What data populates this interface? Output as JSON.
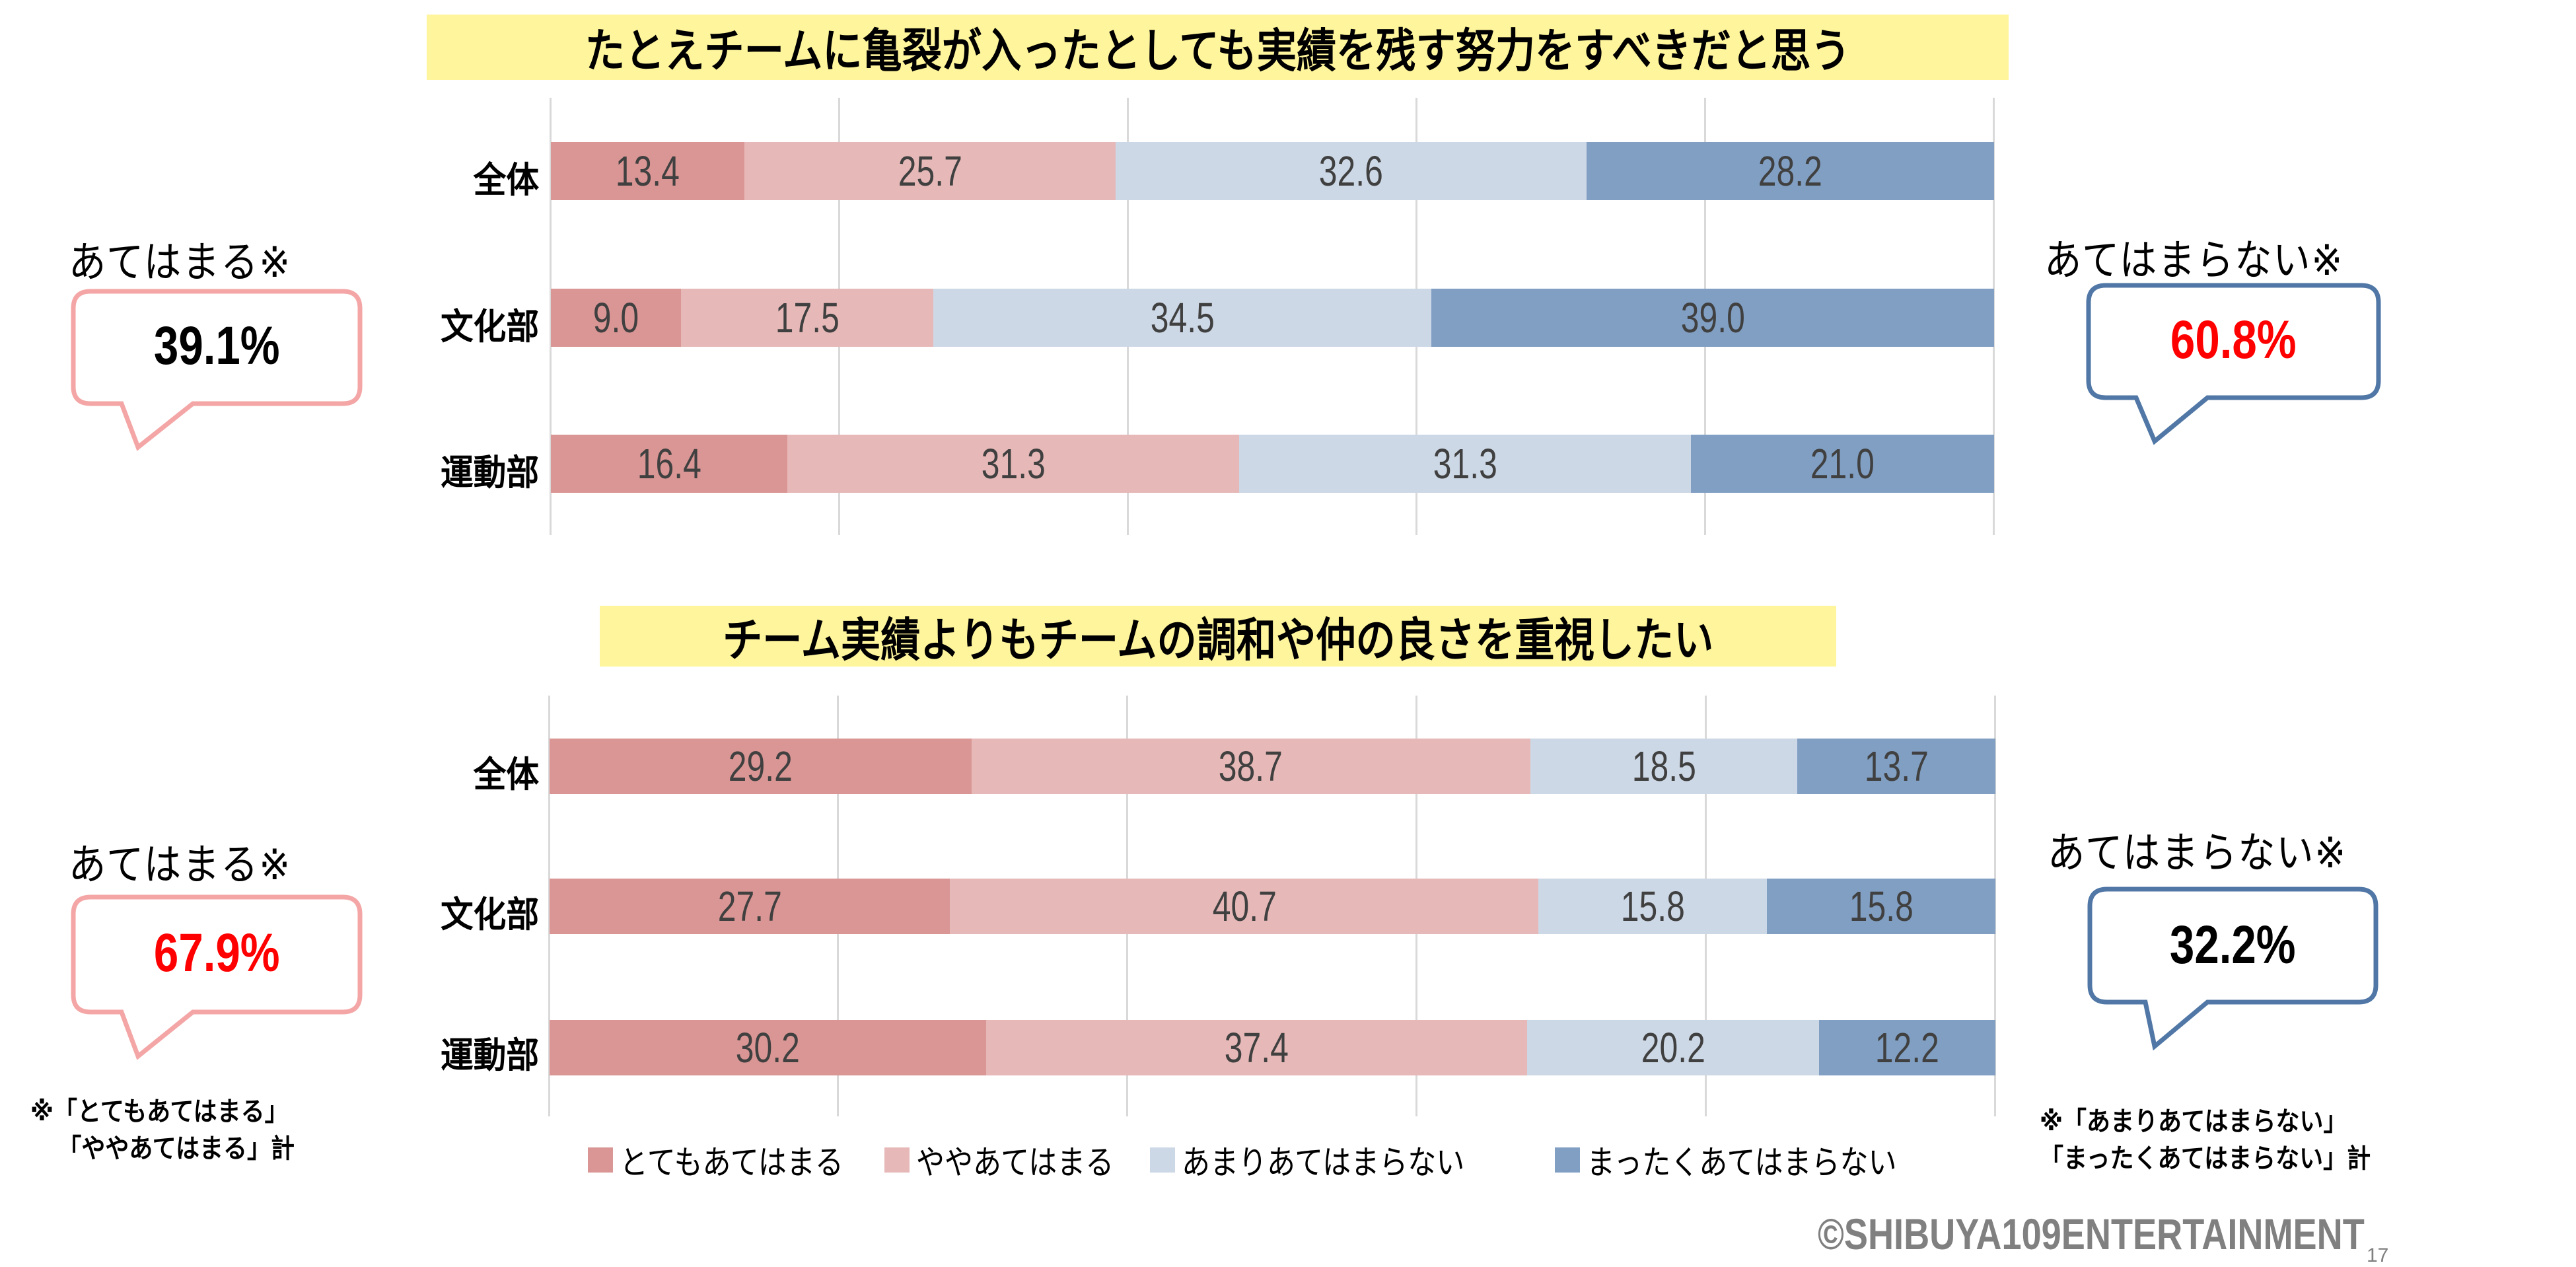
{
  "colors": {
    "very_true": "#D99694",
    "somewhat_true": "#E6B9B8",
    "not_really": "#CDD8E6",
    "not_at_all": "#819FC3",
    "title_bg": "#FFF59D",
    "callout_pink": "#F4A6A6",
    "callout_blue": "#5077A6",
    "highlight_red": "#FF0000",
    "data_label": "#404040",
    "gridline": "#D9D9D9",
    "copyright": "#808080"
  },
  "legend": [
    {
      "label": "とてもあてはまる",
      "color_key": "very_true"
    },
    {
      "label": "ややあてはまる",
      "color_key": "somewhat_true"
    },
    {
      "label": "あまりあてはまらない",
      "color_key": "not_really"
    },
    {
      "label": "まったくあてはまらない",
      "color_key": "not_at_all"
    }
  ],
  "charts": [
    {
      "title": "たとえチームに亀裂が入ったとしても実績を残す努力をすべきだと思う",
      "rows": [
        {
          "category": "全体",
          "values": [
            13.4,
            25.7,
            32.6,
            28.2
          ],
          "labels": [
            "13.4",
            "25.7",
            "32.6",
            "28.2"
          ]
        },
        {
          "category": "文化部",
          "values": [
            9.0,
            17.5,
            34.5,
            39.0
          ],
          "labels": [
            "9.0",
            "17.5",
            "34.5",
            "39.0"
          ]
        },
        {
          "category": "運動部",
          "values": [
            16.4,
            31.3,
            31.3,
            21.0
          ],
          "labels": [
            "16.4",
            "31.3",
            "31.3",
            "21.0"
          ]
        }
      ],
      "callout_left": {
        "label": "あてはまる※",
        "value": "39.1%",
        "value_color": "#000000"
      },
      "callout_right": {
        "label": "あてはまらない※",
        "value": "60.8%",
        "value_color": "#FF0000"
      }
    },
    {
      "title": "チーム実績よりもチームの調和や仲の良さを重視したい",
      "rows": [
        {
          "category": "全体",
          "values": [
            29.2,
            38.7,
            18.5,
            13.7
          ],
          "labels": [
            "29.2",
            "38.7",
            "18.5",
            "13.7"
          ]
        },
        {
          "category": "文化部",
          "values": [
            27.7,
            40.7,
            15.8,
            15.8
          ],
          "labels": [
            "27.7",
            "40.7",
            "15.8",
            "15.8"
          ]
        },
        {
          "category": "運動部",
          "values": [
            30.2,
            37.4,
            20.2,
            12.2
          ],
          "labels": [
            "30.2",
            "37.4",
            "20.2",
            "12.2"
          ]
        }
      ],
      "callout_left": {
        "label": "あてはまる※",
        "value": "67.9%",
        "value_color": "#FF0000"
      },
      "callout_right": {
        "label": "あてはまらない※",
        "value": "32.2%",
        "value_color": "#000000"
      }
    }
  ],
  "footnotes": {
    "left": [
      "※「とてもあてはまる」",
      "「ややあてはまる」計"
    ],
    "right": [
      "※「あまりあてはまらない」",
      "「まったくあてはまらない」計"
    ]
  },
  "copyright": "©SHIBUYA109ENTERTAINMENT",
  "page_number": "17",
  "chart_data": [
    {
      "type": "bar",
      "orientation": "horizontal",
      "stacked": true,
      "title": "たとえチームに亀裂が入ったとしても実績を残す努力をすべきだと思う",
      "categories": [
        "全体",
        "文化部",
        "運動部"
      ],
      "series": [
        {
          "name": "とてもあてはまる",
          "values": [
            13.4,
            9.0,
            16.4
          ]
        },
        {
          "name": "ややあてはまる",
          "values": [
            25.7,
            17.5,
            31.3
          ]
        },
        {
          "name": "あまりあてはまらない",
          "values": [
            32.6,
            34.5,
            31.3
          ]
        },
        {
          "name": "まったくあてはまらない",
          "values": [
            28.2,
            39.0,
            21.0
          ]
        }
      ],
      "annotations": [
        {
          "text": "あてはまる※",
          "value": "39.1%"
        },
        {
          "text": "あてはまらない※",
          "value": "60.8%"
        }
      ],
      "xlabel": "",
      "ylabel": "",
      "xlim": [
        0,
        100
      ],
      "grid": true,
      "legend_position": "bottom"
    },
    {
      "type": "bar",
      "orientation": "horizontal",
      "stacked": true,
      "title": "チーム実績よりもチームの調和や仲の良さを重視したい",
      "categories": [
        "全体",
        "文化部",
        "運動部"
      ],
      "series": [
        {
          "name": "とてもあてはまる",
          "values": [
            29.2,
            27.7,
            30.2
          ]
        },
        {
          "name": "ややあてはまる",
          "values": [
            38.7,
            40.7,
            37.4
          ]
        },
        {
          "name": "あまりあてはまらない",
          "values": [
            18.5,
            15.8,
            20.2
          ]
        },
        {
          "name": "まったくあてはまらない",
          "values": [
            13.7,
            15.8,
            12.2
          ]
        }
      ],
      "annotations": [
        {
          "text": "あてはまる※",
          "value": "67.9%"
        },
        {
          "text": "あてはまらない※",
          "value": "32.2%"
        }
      ],
      "xlabel": "",
      "ylabel": "",
      "xlim": [
        0,
        100
      ],
      "grid": true,
      "legend_position": "bottom"
    }
  ]
}
